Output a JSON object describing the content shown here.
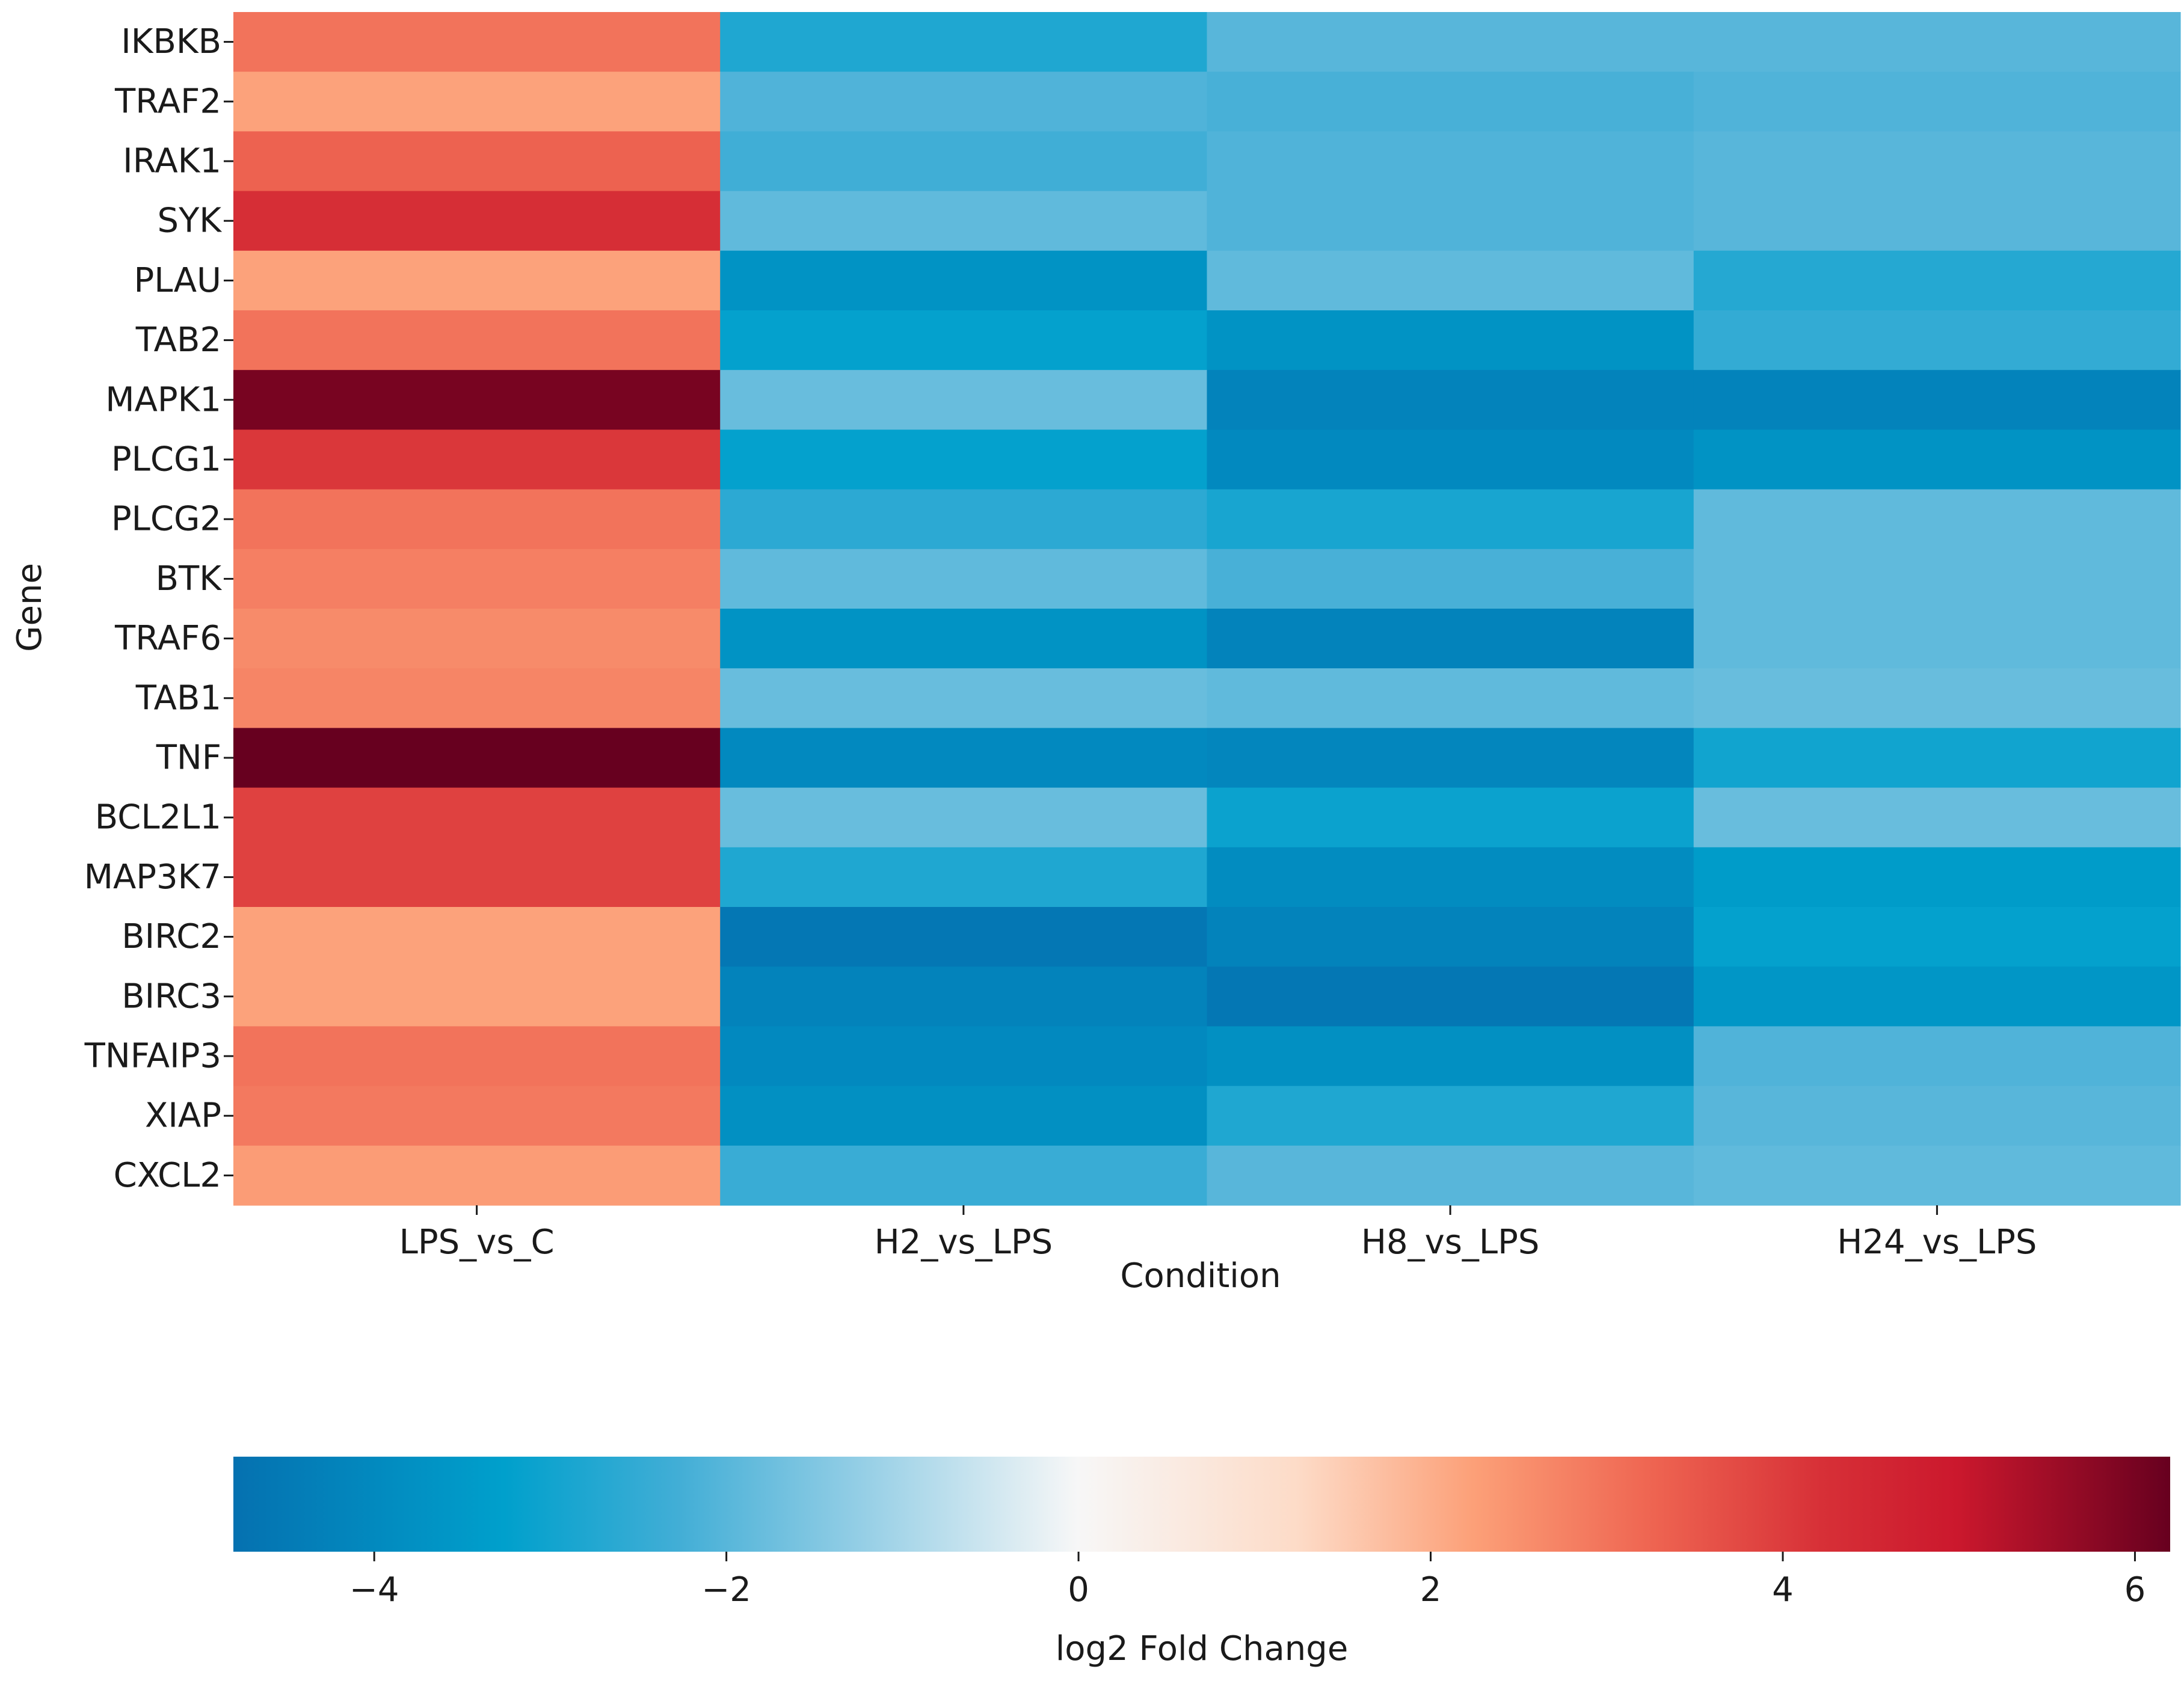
{
  "chart_data": {
    "type": "heatmap",
    "title": "",
    "xlabel": "Condition",
    "ylabel": "Gene",
    "x": [
      "LPS_vs_C",
      "H2_vs_LPS",
      "H8_vs_LPS",
      "H24_vs_LPS"
    ],
    "y": [
      "IKBKB",
      "TRAF2",
      "IRAK1",
      "SYK",
      "PLAU",
      "TAB2",
      "MAPK1",
      "PLCG1",
      "PLCG2",
      "BTK",
      "TRAF6",
      "TAB1",
      "TNF",
      "BCL2L1",
      "MAP3K7",
      "BIRC2",
      "BIRC3",
      "TNFAIP3",
      "XIAP",
      "CXCL2"
    ],
    "values": [
      [
        3.0,
        -2.8,
        -2.0,
        -2.0
      ],
      [
        2.2,
        -2.1,
        -2.2,
        -2.1
      ],
      [
        3.3,
        -2.3,
        -2.1,
        -2.0
      ],
      [
        4.3,
        -1.9,
        -2.1,
        -2.0
      ],
      [
        2.2,
        -3.7,
        -1.9,
        -2.7
      ],
      [
        3.0,
        -3.2,
        -3.7,
        -2.5
      ],
      [
        6.0,
        -1.8,
        -4.2,
        -4.2
      ],
      [
        4.1,
        -3.2,
        -4.0,
        -3.7
      ],
      [
        3.0,
        -2.6,
        -2.9,
        -1.9
      ],
      [
        2.8,
        -1.9,
        -2.2,
        -1.9
      ],
      [
        2.6,
        -3.7,
        -4.2,
        -1.9
      ],
      [
        2.7,
        -1.8,
        -1.9,
        -1.8
      ],
      [
        6.2,
        -4.0,
        -4.1,
        -3.0
      ],
      [
        3.9,
        -1.8,
        -3.1,
        -1.8
      ],
      [
        3.9,
        -2.8,
        -3.9,
        -3.4
      ],
      [
        2.2,
        -4.6,
        -4.2,
        -3.2
      ],
      [
        2.2,
        -4.2,
        -4.6,
        -3.6
      ],
      [
        3.0,
        -4.0,
        -3.8,
        -2.1
      ],
      [
        2.9,
        -3.8,
        -2.8,
        -2.0
      ],
      [
        2.3,
        -2.4,
        -2.0,
        -1.9
      ]
    ],
    "colorbar": {
      "label": "log2 Fold Change",
      "vmin": -4.8,
      "vmax": 6.2,
      "ticks": [
        -4,
        -2,
        0,
        2,
        4,
        6
      ],
      "tick_labels": [
        "−4",
        "−2",
        "0",
        "2",
        "4",
        "6"
      ],
      "orientation": "horizontal"
    }
  }
}
